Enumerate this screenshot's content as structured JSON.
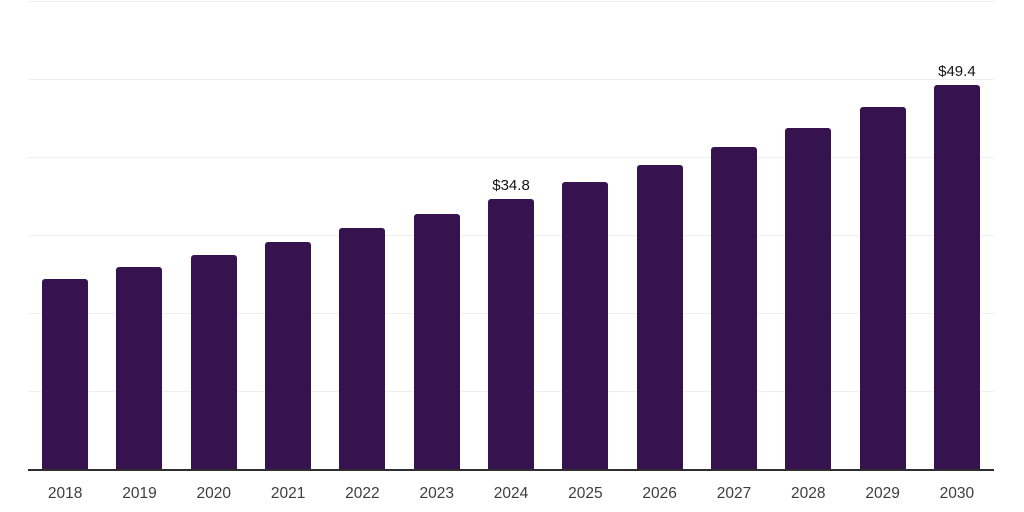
{
  "chart_data": {
    "type": "bar",
    "title": "",
    "xlabel": "",
    "ylabel": "",
    "categories": [
      "2018",
      "2019",
      "2020",
      "2021",
      "2022",
      "2023",
      "2024",
      "2025",
      "2026",
      "2027",
      "2028",
      "2029",
      "2030"
    ],
    "values": [
      24.5,
      26.0,
      27.6,
      29.2,
      31.0,
      32.8,
      34.8,
      36.9,
      39.1,
      41.4,
      43.9,
      46.6,
      49.4
    ],
    "data_labels": [
      {
        "category": "2024",
        "text": "$34.8"
      },
      {
        "category": "2030",
        "text": "$49.4"
      }
    ],
    "ylim": [
      0,
      60
    ],
    "grid": {
      "horizontal": true,
      "step": 10,
      "y_tick_labels_visible": false
    },
    "legend_position": "none",
    "colors": {
      "bar": "#36124f",
      "gridline": "#efefef",
      "axis_line": "#2e2e2e",
      "x_tick_label": "#3d3d3d",
      "data_label": "#141414",
      "background": "#ffffff"
    }
  }
}
